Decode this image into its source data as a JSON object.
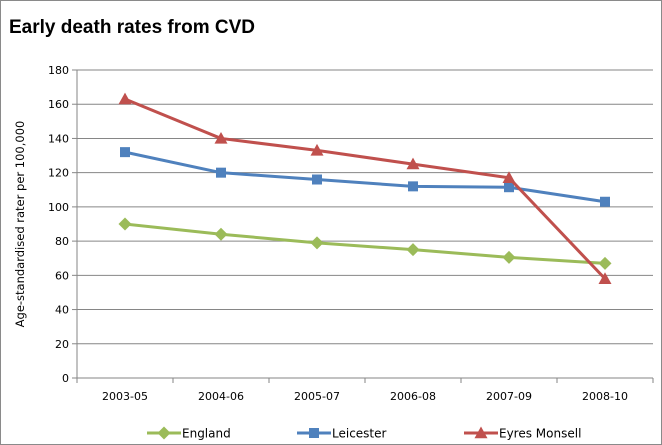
{
  "chart_data": {
    "type": "line",
    "title": "Early death rates from CVD",
    "xlabel": "",
    "ylabel": "Age-standardised rater per 100,000",
    "categories": [
      "2003-05",
      "2004-06",
      "2005-07",
      "2006-08",
      "2007-09",
      "2008-10"
    ],
    "ylim": [
      0,
      180
    ],
    "yticks": [
      0,
      20,
      40,
      60,
      80,
      100,
      120,
      140,
      160,
      180
    ],
    "grid": true,
    "legend_position": "bottom",
    "series": [
      {
        "name": "England",
        "color": "#9BBB59",
        "marker": "diamond",
        "values": [
          90,
          84,
          79,
          75,
          70.5,
          67
        ]
      },
      {
        "name": "Leicester",
        "color": "#4F81BD",
        "marker": "square",
        "values": [
          132,
          120,
          116,
          112,
          111.5,
          103
        ]
      },
      {
        "name": "Eyres Monsell",
        "color": "#C0504D",
        "marker": "triangle",
        "values": [
          163,
          140,
          133,
          125,
          117,
          58
        ]
      }
    ]
  }
}
